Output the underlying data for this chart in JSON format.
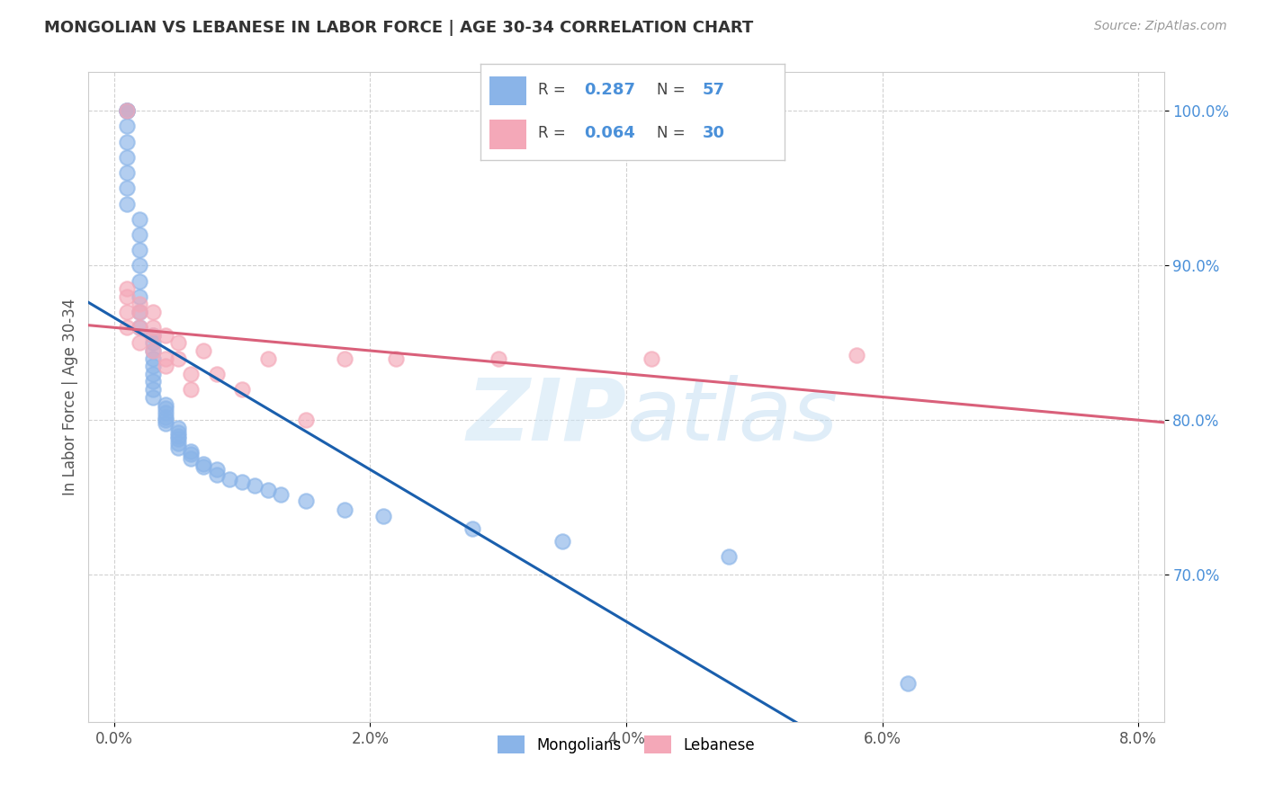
{
  "title": "MONGOLIAN VS LEBANESE IN LABOR FORCE | AGE 30-34 CORRELATION CHART",
  "source": "Source: ZipAtlas.com",
  "ylabel": "In Labor Force | Age 30-34",
  "xlim": [
    -0.002,
    0.082
  ],
  "ylim": [
    0.605,
    1.025
  ],
  "ytick_labels": [
    "70.0%",
    "80.0%",
    "90.0%",
    "100.0%"
  ],
  "ytick_values": [
    0.7,
    0.8,
    0.9,
    1.0
  ],
  "xtick_labels": [
    "0.0%",
    "2.0%",
    "4.0%",
    "6.0%",
    "8.0%"
  ],
  "xtick_values": [
    0.0,
    0.02,
    0.04,
    0.06,
    0.08
  ],
  "R_mongolian": 0.287,
  "N_mongolian": 57,
  "R_lebanese": 0.064,
  "N_lebanese": 30,
  "mongolian_color": "#8ab4e8",
  "lebanese_color": "#f4a8b8",
  "trend_mongolian_color": "#1a5fad",
  "trend_lebanese_color": "#d9607a",
  "mongolian_x": [
    0.001,
    0.001,
    0.001,
    0.001,
    0.001,
    0.001,
    0.001,
    0.001,
    0.001,
    0.002,
    0.002,
    0.002,
    0.002,
    0.002,
    0.002,
    0.002,
    0.002,
    0.003,
    0.003,
    0.003,
    0.003,
    0.003,
    0.003,
    0.003,
    0.003,
    0.003,
    0.004,
    0.004,
    0.004,
    0.004,
    0.004,
    0.004,
    0.005,
    0.005,
    0.005,
    0.005,
    0.005,
    0.005,
    0.006,
    0.006,
    0.006,
    0.007,
    0.007,
    0.008,
    0.008,
    0.009,
    0.01,
    0.011,
    0.012,
    0.013,
    0.015,
    0.018,
    0.021,
    0.028,
    0.035,
    0.048,
    0.062
  ],
  "mongolian_y": [
    1.0,
    1.0,
    1.0,
    0.99,
    0.98,
    0.97,
    0.96,
    0.95,
    0.94,
    0.93,
    0.92,
    0.91,
    0.9,
    0.89,
    0.88,
    0.87,
    0.86,
    0.855,
    0.85,
    0.845,
    0.84,
    0.835,
    0.83,
    0.825,
    0.82,
    0.815,
    0.81,
    0.808,
    0.805,
    0.802,
    0.8,
    0.798,
    0.795,
    0.792,
    0.79,
    0.788,
    0.785,
    0.782,
    0.78,
    0.778,
    0.775,
    0.772,
    0.77,
    0.768,
    0.765,
    0.762,
    0.76,
    0.758,
    0.755,
    0.752,
    0.748,
    0.742,
    0.738,
    0.73,
    0.722,
    0.712,
    0.63
  ],
  "lebanese_x": [
    0.001,
    0.001,
    0.001,
    0.001,
    0.001,
    0.002,
    0.002,
    0.002,
    0.002,
    0.003,
    0.003,
    0.003,
    0.003,
    0.004,
    0.004,
    0.004,
    0.005,
    0.005,
    0.006,
    0.006,
    0.007,
    0.008,
    0.01,
    0.012,
    0.015,
    0.018,
    0.022,
    0.03,
    0.042,
    0.058
  ],
  "lebanese_y": [
    1.0,
    0.885,
    0.88,
    0.87,
    0.86,
    0.875,
    0.87,
    0.86,
    0.85,
    0.87,
    0.86,
    0.855,
    0.845,
    0.855,
    0.84,
    0.835,
    0.85,
    0.84,
    0.83,
    0.82,
    0.845,
    0.83,
    0.82,
    0.84,
    0.8,
    0.84,
    0.84,
    0.84,
    0.84,
    0.842
  ]
}
